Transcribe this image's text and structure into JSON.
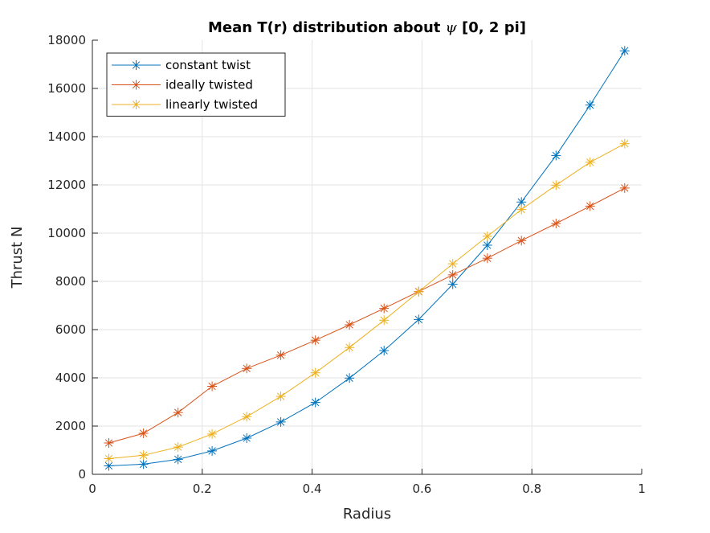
{
  "chart_data": {
    "type": "line",
    "title_prefix": "Mean T(r) distribution about ",
    "title_symbol": "ψ",
    "title_suffix": " [0, 2 pi]",
    "xlabel": "Radius",
    "ylabel": "Thrust N",
    "xlim": [
      0,
      1
    ],
    "ylim": [
      0,
      18000
    ],
    "xticks": [
      0,
      0.2,
      0.4,
      0.6,
      0.8,
      1
    ],
    "xtick_labels": [
      "0",
      "0.2",
      "0.4",
      "0.6",
      "0.8",
      "1"
    ],
    "yticks": [
      0,
      2000,
      4000,
      6000,
      8000,
      10000,
      12000,
      14000,
      16000,
      18000
    ],
    "ytick_labels": [
      "0",
      "2000",
      "4000",
      "6000",
      "8000",
      "10000",
      "12000",
      "14000",
      "16000",
      "18000"
    ],
    "grid": true,
    "legend_position": "top-left",
    "marker": "asterisk",
    "x": [
      0.03,
      0.093,
      0.156,
      0.218,
      0.281,
      0.343,
      0.406,
      0.468,
      0.531,
      0.594,
      0.656,
      0.719,
      0.781,
      0.844,
      0.906,
      0.969
    ],
    "series": [
      {
        "name": "constant twist",
        "color": "#0072BD",
        "values": [
          350,
          420,
          620,
          970,
          1500,
          2170,
          2980,
          3990,
          5130,
          6420,
          7880,
          9500,
          11290,
          13220,
          15310,
          17560
        ]
      },
      {
        "name": "ideally twisted",
        "color": "#D95319",
        "values": [
          1300,
          1700,
          2560,
          3650,
          4390,
          4940,
          5560,
          6200,
          6880,
          7580,
          8270,
          8960,
          9690,
          10400,
          11120,
          11870
        ]
      },
      {
        "name": "linearly twisted",
        "color": "#EDB120",
        "values": [
          650,
          790,
          1130,
          1670,
          2390,
          3230,
          4210,
          5260,
          6390,
          7570,
          8730,
          9870,
          10980,
          11990,
          12940,
          13710
        ]
      }
    ]
  }
}
